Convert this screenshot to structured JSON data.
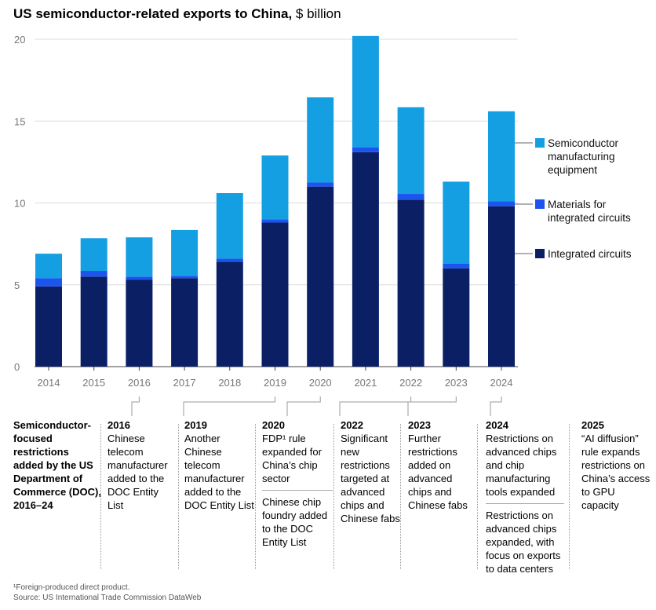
{
  "title": {
    "bold": "US semiconductor-related exports to China,",
    "unit": " $ billion"
  },
  "chart_data": {
    "type": "bar",
    "stacked": true,
    "categories": [
      "2014",
      "2015",
      "2016",
      "2017",
      "2018",
      "2019",
      "2020",
      "2021",
      "2022",
      "2023",
      "2024"
    ],
    "series": [
      {
        "name": "Integrated circuits",
        "color": "#0b1f65",
        "values": [
          4.9,
          5.5,
          5.3,
          5.4,
          6.4,
          8.8,
          11.0,
          13.1,
          10.2,
          6.0,
          9.8
        ]
      },
      {
        "name": "Materials for integrated circuits",
        "color": "#1c55ee",
        "values": [
          0.5,
          0.35,
          0.2,
          0.15,
          0.2,
          0.2,
          0.25,
          0.3,
          0.35,
          0.3,
          0.3
        ]
      },
      {
        "name": "Semiconductor manufacturing equipment",
        "color": "#159fe3",
        "values": [
          1.5,
          2.0,
          2.4,
          2.8,
          4.0,
          3.9,
          5.2,
          6.8,
          5.3,
          5.0,
          5.5
        ]
      }
    ],
    "ylim": [
      0,
      20
    ],
    "yticks": [
      0,
      5,
      10,
      15,
      20
    ],
    "grid": true,
    "legend": [
      {
        "lines": [
          "Semiconductor",
          "manufacturing",
          "equipment"
        ],
        "color": "#159fe3"
      },
      {
        "lines": [
          "Materials for",
          "integrated circuits"
        ],
        "color": "#1c55ee"
      },
      {
        "lines": [
          "Integrated circuits"
        ],
        "color": "#0b1f65"
      }
    ]
  },
  "timeline": {
    "label": "Semiconductor-focused restrictions added by the US Department of Commerce (DOC), 2016–24",
    "events": [
      {
        "year": "2016",
        "text": "Chinese telecom manufacturer added to the DOC Entity List"
      },
      {
        "year": "2019",
        "text": "Another Chinese telecom manufacturer added to the DOC Entity List"
      },
      {
        "year": "2020",
        "text": "FDP¹ rule expanded for China’s chip sector",
        "text2": "Chinese chip foundry added to the DOC Entity List"
      },
      {
        "year": "2022",
        "text": "Significant new restrictions targeted at advanced chips and Chinese fabs"
      },
      {
        "year": "2023",
        "text": "Further restrictions added on advanced chips and Chinese fabs"
      },
      {
        "year": "2024",
        "text": "Restrictions on advanced chips and chip manufacturing tools expanded",
        "text2": "Restrictions on advanced chips expanded, with focus on exports to data centers"
      },
      {
        "year": "2025",
        "text": "“AI diffusion” rule expands restrictions on China’s access to GPU capacity"
      }
    ]
  },
  "footnote": {
    "note": "¹Foreign-produced direct product.",
    "source": "Source: US International Trade Commission DataWeb"
  }
}
